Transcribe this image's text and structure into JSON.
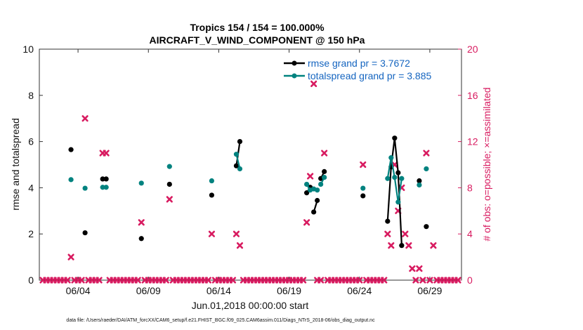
{
  "chart_data": {
    "type": "scatter",
    "title": "Tropics 154 / 154 = 100.000%",
    "subtitle": "AIRCRAFT_V_WIND_COMPONENT @ 150 hPa",
    "xlabel": "Jun.01,2018 00:00:00 start",
    "ylabel_left": "rmse and totalspread",
    "ylabel_right": "# of obs: o=possible; ×=assimilated",
    "footnote": "data file: /Users/raeder/DAI/ATM_forcXX/CAM6_setup/f.e21.FHIST_BGC.f09_025.CAM6assim.011/Diags_NTrS_2018-06/obs_diag_output.nc",
    "x_range_days": [
      0.75,
      30.75
    ],
    "ylim_left": [
      0,
      10
    ],
    "ylim_right": [
      0,
      20
    ],
    "x_ticks": [
      {
        "day": 3.5,
        "label": "06/04"
      },
      {
        "day": 8.5,
        "label": "06/09"
      },
      {
        "day": 13.5,
        "label": "06/14"
      },
      {
        "day": 18.5,
        "label": "06/19"
      },
      {
        "day": 23.5,
        "label": "06/24"
      },
      {
        "day": 28.5,
        "label": "06/29"
      }
    ],
    "y_ticks_left": [
      "0",
      "2",
      "4",
      "6",
      "8",
      "10"
    ],
    "y_ticks_right": [
      "0",
      "4",
      "8",
      "12",
      "16",
      "20"
    ],
    "legend": [
      {
        "label": "rmse grand pr = 3.7672"
      },
      {
        "label": "totalspread grand pr = 3.885"
      }
    ],
    "colors": {
      "rmse": "#000000",
      "totalspread": "#00827f",
      "obs": "#d81b60"
    },
    "series": [
      {
        "name": "rmse",
        "segments": [
          [
            [
              3.0,
              5.65
            ]
          ],
          [
            [
              4.0,
              2.05
            ]
          ],
          [
            [
              5.25,
              4.38
            ]
          ],
          [
            [
              5.5,
              4.38
            ]
          ],
          [
            [
              8.0,
              1.8
            ]
          ],
          [
            [
              10.0,
              4.15
            ]
          ],
          [
            [
              13.0,
              3.68
            ]
          ],
          [
            [
              14.75,
              4.95
            ],
            [
              15.0,
              6.0
            ]
          ],
          [
            [
              19.75,
              3.78
            ],
            [
              20.0,
              4.02
            ]
          ],
          [
            [
              20.25,
              2.95
            ],
            [
              20.5,
              3.45
            ]
          ],
          [
            [
              20.75,
              4.4
            ],
            [
              21.0,
              4.7
            ]
          ],
          [
            [
              23.75,
              3.65
            ]
          ],
          [
            [
              25.5,
              2.55
            ],
            [
              25.75,
              4.9
            ],
            [
              26.0,
              6.15
            ],
            [
              26.25,
              4.65
            ],
            [
              26.5,
              1.5
            ]
          ],
          [
            [
              27.75,
              4.3
            ]
          ],
          [
            [
              28.25,
              2.32
            ]
          ]
        ]
      },
      {
        "name": "totalspread",
        "segments": [
          [
            [
              3.0,
              4.35
            ]
          ],
          [
            [
              4.0,
              3.98
            ]
          ],
          [
            [
              5.25,
              4.02
            ]
          ],
          [
            [
              5.5,
              4.02
            ]
          ],
          [
            [
              8.0,
              4.2
            ]
          ],
          [
            [
              10.0,
              4.92
            ]
          ],
          [
            [
              13.0,
              4.3
            ]
          ],
          [
            [
              14.75,
              5.45
            ],
            [
              15.0,
              4.82
            ]
          ],
          [
            [
              19.75,
              4.15
            ],
            [
              20.0,
              3.9
            ]
          ],
          [
            [
              20.25,
              3.95
            ],
            [
              20.5,
              3.9
            ]
          ],
          [
            [
              20.75,
              4.15
            ],
            [
              21.0,
              4.45
            ]
          ],
          [
            [
              23.75,
              3.98
            ]
          ],
          [
            [
              25.5,
              4.4
            ],
            [
              25.75,
              5.3
            ],
            [
              26.0,
              4.45
            ],
            [
              26.25,
              3.38
            ],
            [
              26.5,
              4.4
            ]
          ],
          [
            [
              27.75,
              4.12
            ]
          ],
          [
            [
              28.25,
              4.82
            ]
          ]
        ]
      },
      {
        "name": "obs_count",
        "points": [
          [
            3.0,
            2
          ],
          [
            4.0,
            14
          ],
          [
            5.25,
            11
          ],
          [
            5.5,
            11
          ],
          [
            8.0,
            5
          ],
          [
            10.0,
            7
          ],
          [
            13.0,
            4
          ],
          [
            14.75,
            4
          ],
          [
            15.0,
            3
          ],
          [
            19.75,
            5
          ],
          [
            20.0,
            9
          ],
          [
            20.25,
            17
          ],
          [
            21.0,
            11
          ],
          [
            23.75,
            10
          ],
          [
            25.5,
            4
          ],
          [
            25.75,
            3
          ],
          [
            26.0,
            10
          ],
          [
            26.25,
            6
          ],
          [
            26.5,
            8
          ],
          [
            26.75,
            4
          ],
          [
            27.0,
            3
          ],
          [
            27.25,
            1
          ],
          [
            27.75,
            1
          ],
          [
            28.25,
            11
          ],
          [
            28.75,
            3
          ]
        ]
      }
    ]
  }
}
